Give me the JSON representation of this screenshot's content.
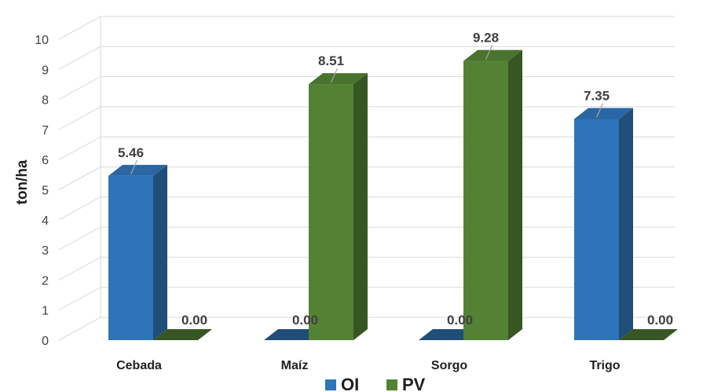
{
  "chart_data": {
    "type": "bar",
    "categories": [
      "Cebada",
      "Maíz",
      "Sorgo",
      "Trigo"
    ],
    "series": [
      {
        "name": "OI",
        "values": [
          5.46,
          0.0,
          0.0,
          7.35
        ],
        "color": "#2e74b8",
        "side_color": "#1f4e79",
        "top_color": "#2a66a3"
      },
      {
        "name": "PV",
        "values": [
          0.0,
          8.51,
          9.28,
          0.0
        ],
        "color": "#548235",
        "side_color": "#375623",
        "top_color": "#4a732e"
      }
    ],
    "data_labels": [
      [
        "5.46",
        "0.00",
        "0.00",
        "7.35"
      ],
      [
        "0.00",
        "8.51",
        "9.28",
        "0.00"
      ]
    ],
    "ylabel": "ton/ha",
    "ylim": [
      0,
      10
    ],
    "yticks": [
      "0",
      "1",
      "2",
      "3",
      "4",
      "5",
      "6",
      "7",
      "8",
      "9",
      "10"
    ],
    "grid": true,
    "legend_position": "bottom"
  }
}
